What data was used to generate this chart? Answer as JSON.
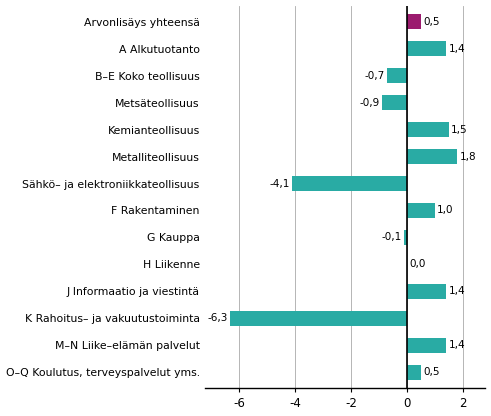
{
  "categories": [
    "Arvonlisäys yhteensä",
    "A Alkutuotanto",
    "B–E Koko teollisuus",
    "Metsäteollisuus",
    "Kemianteollisuus",
    "Metalliteollisuus",
    "Sähkö– ja elektroniikkateollisuus",
    "F Rakentaminen",
    "G Kauppa",
    "H Liikenne",
    "J Informaatio ja viestintä",
    "K Rahoitus– ja vakuutustoiminta",
    "M–N Liike–elämän palvelut",
    "O–Q Koulutus, terveyspalvelut yms."
  ],
  "values": [
    0.5,
    1.4,
    -0.7,
    -0.9,
    1.5,
    1.8,
    -4.1,
    1.0,
    -0.1,
    0.0,
    1.4,
    -6.3,
    1.4,
    0.5
  ],
  "bar_colors": [
    "#9b1b6e",
    "#29aba4",
    "#29aba4",
    "#29aba4",
    "#29aba4",
    "#29aba4",
    "#29aba4",
    "#29aba4",
    "#29aba4",
    "#29aba4",
    "#29aba4",
    "#29aba4",
    "#29aba4",
    "#29aba4"
  ],
  "xlim": [
    -7.2,
    2.8
  ],
  "xticks": [
    -6,
    -4,
    -2,
    0,
    2
  ],
  "bar_height": 0.55,
  "value_fontsize": 7.5,
  "label_fontsize": 7.8,
  "tick_fontsize": 8.5,
  "figsize": [
    4.91,
    4.16
  ],
  "dpi": 100
}
